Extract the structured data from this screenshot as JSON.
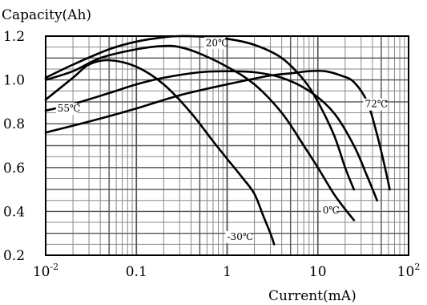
{
  "chart_data": {
    "type": "line",
    "title": "",
    "ylabel": "Capacity(Ah)",
    "xlabel": "Current(mA)",
    "xscale": "log",
    "xlim": [
      0.01,
      100
    ],
    "ylim": [
      0.2,
      1.2
    ],
    "grid": true,
    "x_ticks": [
      {
        "value": 0.01,
        "base": "10",
        "exp": "-2"
      },
      {
        "value": 0.1,
        "base": "0.1",
        "exp": ""
      },
      {
        "value": 1,
        "base": "1",
        "exp": ""
      },
      {
        "value": 10,
        "base": "10",
        "exp": ""
      },
      {
        "value": 100,
        "base": "10",
        "exp": "2"
      }
    ],
    "y_ticks": [
      {
        "value": 0.2,
        "label": "0.2"
      },
      {
        "value": 0.4,
        "label": "0.4"
      },
      {
        "value": 0.6,
        "label": "0.6"
      },
      {
        "value": 0.8,
        "label": "0.8"
      },
      {
        "value": 1.0,
        "label": "1.0"
      },
      {
        "value": 1.2,
        "label": "1.2"
      }
    ],
    "series": [
      {
        "name": "20℃",
        "label_at": [
          0.58,
          1.155
        ],
        "points": [
          [
            0.01,
            1.01
          ],
          [
            0.02,
            1.07
          ],
          [
            0.05,
            1.14
          ],
          [
            0.1,
            1.175
          ],
          [
            0.2,
            1.195
          ],
          [
            0.3,
            1.2
          ],
          [
            0.5,
            1.198
          ],
          [
            1,
            1.188
          ],
          [
            2,
            1.16
          ],
          [
            4,
            1.1
          ],
          [
            7,
            1.0
          ],
          [
            10,
            0.9
          ],
          [
            15,
            0.75
          ],
          [
            20,
            0.6
          ],
          [
            25,
            0.5
          ]
        ]
      },
      {
        "name": "0℃",
        "points": [
          [
            0.01,
            1.0
          ],
          [
            0.02,
            1.04
          ],
          [
            0.04,
            1.1
          ],
          [
            0.1,
            1.14
          ],
          [
            0.2,
            1.155
          ],
          [
            0.3,
            1.15
          ],
          [
            0.5,
            1.12
          ],
          [
            1,
            1.06
          ],
          [
            2,
            0.98
          ],
          [
            4,
            0.85
          ],
          [
            7,
            0.7
          ],
          [
            10,
            0.6
          ],
          [
            15,
            0.48
          ],
          [
            20,
            0.41
          ],
          [
            25,
            0.36
          ]
        ],
        "label_at": [
          11.3,
          0.39
        ]
      },
      {
        "name": "-30℃",
        "points": [
          [
            0.01,
            0.91
          ],
          [
            0.02,
            1.01
          ],
          [
            0.03,
            1.07
          ],
          [
            0.05,
            1.09
          ],
          [
            0.1,
            1.06
          ],
          [
            0.2,
            0.98
          ],
          [
            0.4,
            0.85
          ],
          [
            0.7,
            0.72
          ],
          [
            1,
            0.64
          ],
          [
            1.5,
            0.55
          ],
          [
            2,
            0.48
          ],
          [
            2.5,
            0.38
          ],
          [
            3,
            0.3
          ],
          [
            3.3,
            0.25
          ]
        ],
        "label_at": [
          1.0,
          0.27
        ]
      },
      {
        "name": "55℃",
        "points": [
          [
            0.01,
            0.86
          ],
          [
            0.02,
            0.89
          ],
          [
            0.05,
            0.94
          ],
          [
            0.1,
            0.98
          ],
          [
            0.2,
            1.01
          ],
          [
            0.5,
            1.035
          ],
          [
            1,
            1.04
          ],
          [
            2,
            1.035
          ],
          [
            4,
            1.01
          ],
          [
            8,
            0.95
          ],
          [
            15,
            0.85
          ],
          [
            25,
            0.7
          ],
          [
            35,
            0.56
          ],
          [
            45,
            0.45
          ]
        ],
        "label_at": [
          0.0135,
          0.855
        ]
      },
      {
        "name": "72℃",
        "points": [
          [
            0.01,
            0.76
          ],
          [
            0.03,
            0.81
          ],
          [
            0.1,
            0.87
          ],
          [
            0.3,
            0.93
          ],
          [
            1,
            0.98
          ],
          [
            3,
            1.02
          ],
          [
            5,
            1.03
          ],
          [
            8,
            1.04
          ],
          [
            12,
            1.04
          ],
          [
            18,
            1.02
          ],
          [
            25,
            0.99
          ],
          [
            35,
            0.9
          ],
          [
            45,
            0.75
          ],
          [
            55,
            0.6
          ],
          [
            62,
            0.5
          ]
        ],
        "label_at": [
          33.0,
          0.875
        ]
      }
    ]
  }
}
